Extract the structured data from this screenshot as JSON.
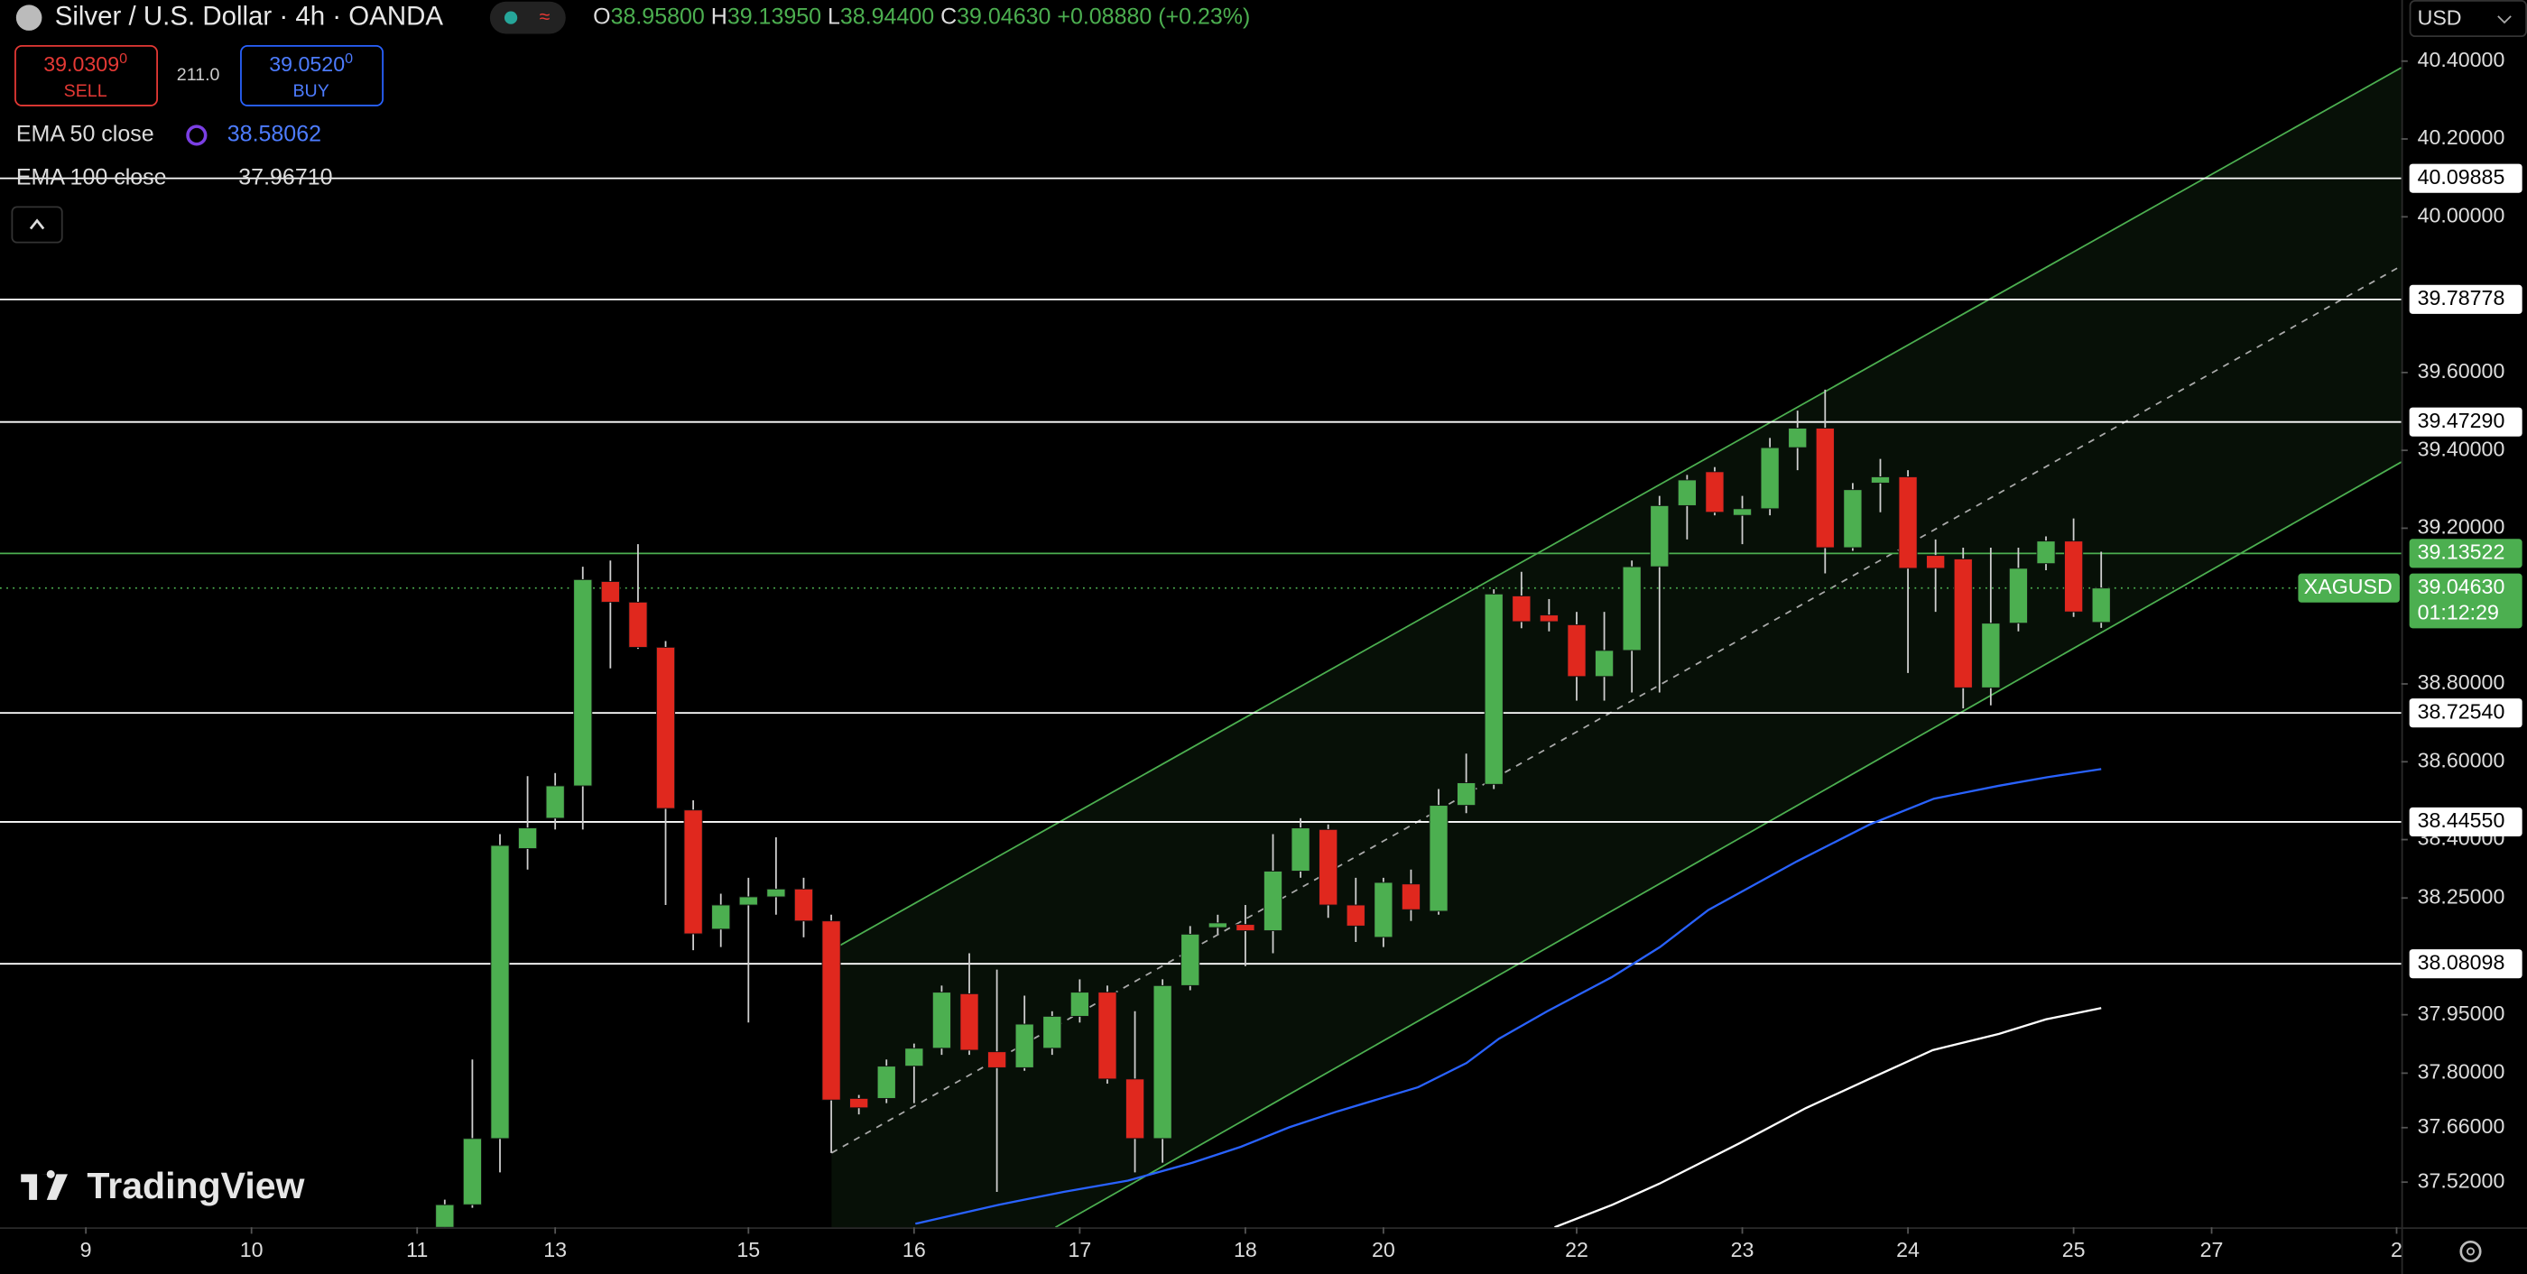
{
  "chart_data": {
    "type": "candlestick",
    "title": "Silver / U.S. Dollar · 4h · OANDA",
    "ohlc_legend": [
      {
        "key": "O",
        "text": "38.95800"
      },
      {
        "key": "H",
        "text": "39.13950"
      },
      {
        "key": "L",
        "text": "38.94400"
      },
      {
        "key": "C",
        "text": "39.04630"
      }
    ],
    "change": "+0.08880 (+0.23%)",
    "up_color": "#4caf50",
    "down_color": "#e0281e",
    "open": [
      37.404,
      37.462,
      37.632,
      38.377,
      38.455,
      38.538,
      39.063,
      39.01,
      38.894,
      38.476,
      38.17,
      38.232,
      38.253,
      38.273,
      38.191,
      37.735,
      37.735,
      37.818,
      37.864,
      38.004,
      37.855,
      37.814,
      37.864,
      37.946,
      38.008,
      37.785,
      37.632,
      38.025,
      38.174,
      38.182,
      38.166,
      38.319,
      38.426,
      38.232,
      38.149,
      38.286,
      38.216,
      38.488,
      38.542,
      39.026,
      38.977,
      38.952,
      38.819,
      38.886,
      39.101,
      39.258,
      39.345,
      39.233,
      39.25,
      39.407,
      39.457,
      39.15,
      39.316,
      39.332,
      39.13,
      39.121,
      38.79,
      38.956,
      39.109,
      39.167,
      38.958
    ],
    "high": [
      37.475,
      37.835,
      38.414,
      38.563,
      38.571,
      39.101,
      39.117,
      39.159,
      38.91,
      38.501,
      38.261,
      38.302,
      38.406,
      38.302,
      38.207,
      37.744,
      37.835,
      37.876,
      38.025,
      38.108,
      38.066,
      37.999,
      37.959,
      38.041,
      38.025,
      37.959,
      38.041,
      38.178,
      38.207,
      38.232,
      38.414,
      38.455,
      38.439,
      38.302,
      38.302,
      38.323,
      38.53,
      38.621,
      39.043,
      39.088,
      39.018,
      38.985,
      38.985,
      39.117,
      39.283,
      39.337,
      39.357,
      39.283,
      39.432,
      39.502,
      39.556,
      39.316,
      39.378,
      39.349,
      39.171,
      39.15,
      39.15,
      39.15,
      39.179,
      39.225,
      39.1395
    ],
    "low": [
      37.404,
      37.454,
      37.545,
      38.323,
      38.426,
      38.426,
      38.84,
      38.89,
      38.232,
      38.116,
      38.124,
      37.93,
      38.207,
      38.149,
      37.595,
      37.694,
      37.723,
      37.723,
      37.847,
      37.847,
      37.495,
      37.806,
      37.847,
      37.93,
      37.773,
      37.545,
      37.57,
      38.013,
      38.157,
      38.075,
      38.108,
      38.302,
      38.199,
      38.137,
      38.124,
      38.191,
      38.207,
      38.468,
      38.53,
      38.943,
      38.935,
      38.757,
      38.757,
      38.778,
      38.778,
      39.171,
      39.233,
      39.159,
      39.233,
      39.349,
      39.084,
      39.142,
      39.241,
      38.828,
      38.985,
      38.737,
      38.745,
      38.935,
      39.092,
      38.972,
      38.944
    ],
    "close": [
      37.462,
      37.632,
      38.385,
      38.43,
      38.538,
      39.068,
      39.01,
      38.894,
      38.48,
      38.158,
      38.232,
      38.253,
      38.273,
      38.191,
      37.731,
      37.711,
      37.818,
      37.864,
      38.008,
      37.859,
      37.814,
      37.926,
      37.946,
      38.008,
      37.785,
      37.632,
      38.025,
      38.157,
      38.186,
      38.166,
      38.319,
      38.43,
      38.232,
      38.178,
      38.29,
      38.22,
      38.488,
      38.546,
      39.031,
      38.96,
      38.96,
      38.819,
      38.886,
      39.101,
      39.258,
      39.324,
      39.241,
      39.25,
      39.407,
      39.457,
      39.15,
      39.299,
      39.332,
      39.097,
      39.097,
      38.79,
      38.956,
      39.097,
      39.167,
      38.985,
      39.0463
    ],
    "xlim": [
      -16.11,
      70.87
    ],
    "xticks": [
      {
        "value": -13,
        "label": "9"
      },
      {
        "value": -7,
        "label": "10"
      },
      {
        "value": -1,
        "label": "11"
      },
      {
        "value": 4,
        "label": "13"
      },
      {
        "value": 11,
        "label": "15"
      },
      {
        "value": 17,
        "label": "16"
      },
      {
        "value": 23,
        "label": "17"
      },
      {
        "value": 29,
        "label": "18"
      },
      {
        "value": 34,
        "label": "20"
      },
      {
        "value": 41,
        "label": "22"
      },
      {
        "value": 47,
        "label": "23"
      },
      {
        "value": 53,
        "label": "24"
      },
      {
        "value": 59,
        "label": "25"
      },
      {
        "value": 64,
        "label": "27"
      },
      {
        "value": 70.7,
        "label": "2"
      }
    ],
    "ylim": [
      37.404,
      40.557
    ],
    "yticks": [
      {
        "value": 40.4,
        "label": "40.40000"
      },
      {
        "value": 40.2,
        "label": "40.20000"
      },
      {
        "value": 40.0,
        "label": "40.00000"
      },
      {
        "value": 39.6,
        "label": "39.60000"
      },
      {
        "value": 39.4,
        "label": "39.40000"
      },
      {
        "value": 39.2,
        "label": "39.20000"
      },
      {
        "value": 38.8,
        "label": "38.80000"
      },
      {
        "value": 38.6,
        "label": "38.60000"
      },
      {
        "value": 38.4,
        "label": "38.40000"
      },
      {
        "value": 38.25,
        "label": "38.25000"
      },
      {
        "value": 37.95,
        "label": "37.95000"
      },
      {
        "value": 37.8,
        "label": "37.80000"
      },
      {
        "value": 37.66,
        "label": "37.66000"
      },
      {
        "value": 37.52,
        "label": "37.52000"
      }
    ],
    "series": [
      {
        "name": "EMA 50 close",
        "last_label": "38.58062",
        "color": "#2962ff",
        "x": [
          17.05,
          20.08,
          22.42,
          24.75,
          27.09,
          28.84,
          30.59,
          32.34,
          35.26,
          37.01,
          38.18,
          39.93,
          42.26,
          44.02,
          45.77,
          48.98,
          51.61,
          53.94,
          56.28,
          58.03,
          60.0
        ],
        "values": [
          37.413,
          37.462,
          37.495,
          37.524,
          37.57,
          37.611,
          37.661,
          37.702,
          37.764,
          37.826,
          37.888,
          37.959,
          38.046,
          38.124,
          38.219,
          38.344,
          38.439,
          38.505,
          38.538,
          38.56,
          38.581
        ]
      },
      {
        "name": "EMA 100 close",
        "last_label": "37.96710",
        "color": "#ffffff",
        "x": [
          40.2,
          42.3,
          44.0,
          46.9,
          49.3,
          51.6,
          53.9,
          56.3,
          58.0,
          60.0
        ],
        "values": [
          37.404,
          37.462,
          37.516,
          37.62,
          37.71,
          37.785,
          37.859,
          37.901,
          37.938,
          37.967
        ]
      }
    ],
    "price_lines": [
      {
        "value": 40.09885,
        "label": "40.09885",
        "color": "#ffffff"
      },
      {
        "value": 39.78778,
        "label": "39.78778",
        "color": "#ffffff"
      },
      {
        "value": 39.4729,
        "label": "39.47290",
        "color": "#ffffff"
      },
      {
        "value": 39.13522,
        "label": "39.13522",
        "color": "#4caf50"
      },
      {
        "value": 38.7254,
        "label": "38.72540",
        "color": "#ffffff"
      },
      {
        "value": 38.4455,
        "label": "38.44550",
        "color": "#ffffff"
      },
      {
        "value": 38.08098,
        "label": "38.08098",
        "color": "#ffffff"
      }
    ],
    "channel": {
      "color": "#4caf50",
      "upper": [
        [
          14.01,
          38.116
        ],
        [
          70.87,
          40.383
        ]
      ],
      "middle": [
        [
          14.01,
          37.595
        ],
        [
          70.87,
          39.874
        ]
      ],
      "lower": [
        [
          22.12,
          37.404
        ],
        [
          70.87,
          39.37
        ]
      ]
    },
    "last_price": {
      "symbol": "XAGUSD",
      "value": 39.0463,
      "label": "39.04630",
      "countdown": "01:12:29"
    }
  },
  "ui": {
    "currency": "USD",
    "sell": {
      "price": "39.0309",
      "sup": "0",
      "label": "SELL"
    },
    "spread": "211.0",
    "buy": {
      "price": "39.0520",
      "sup": "0",
      "label": "BUY"
    },
    "watermark": "TradingView"
  }
}
